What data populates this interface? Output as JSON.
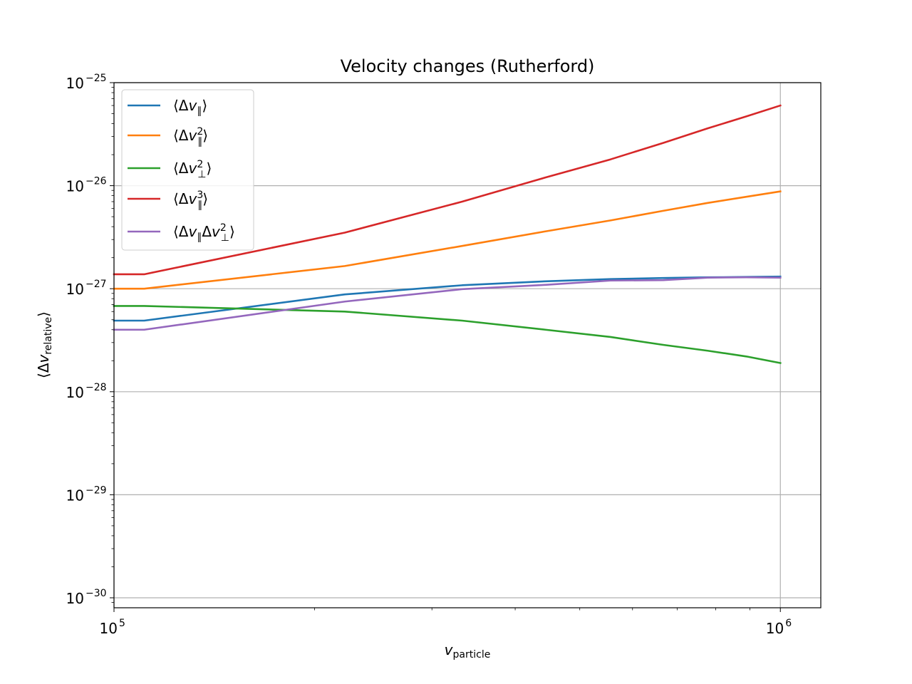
{
  "chart_data": {
    "type": "line",
    "title": "Velocity changes (Rutherford)",
    "xlabel": "v_particle",
    "ylabel": "⟨Δv_relative⟩",
    "xscale": "log",
    "yscale": "log",
    "xlim": [
      100000,
      1150000
    ],
    "ylim": [
      8e-31,
      1e-25
    ],
    "grid": true,
    "legend_position": "top-left",
    "x_ticks": [
      {
        "value": 100000,
        "mantissa": "10",
        "exponent": "5"
      },
      {
        "value": 1000000,
        "mantissa": "10",
        "exponent": "6"
      }
    ],
    "y_ticks": [
      {
        "value": 1e-30,
        "mantissa": "10",
        "exponent": "−30"
      },
      {
        "value": 1e-29,
        "mantissa": "10",
        "exponent": "−29"
      },
      {
        "value": 1e-28,
        "mantissa": "10",
        "exponent": "−28"
      },
      {
        "value": 1e-27,
        "mantissa": "10",
        "exponent": "−27"
      },
      {
        "value": 1e-26,
        "mantissa": "10",
        "exponent": "−26"
      },
      {
        "value": 1e-25,
        "mantissa": "10",
        "exponent": "−25"
      }
    ],
    "x": [
      100000,
      111000,
      222000,
      333000,
      444000,
      556000,
      667000,
      778000,
      889000,
      1000000
    ],
    "series": [
      {
        "name": "⟨Δv∥⟩",
        "color": "#1f77b4",
        "values": [
          4.9e-28,
          4.9e-28,
          8.8e-28,
          1.08e-27,
          1.18e-27,
          1.24e-27,
          1.27e-27,
          1.29e-27,
          1.3e-27,
          1.31e-27
        ]
      },
      {
        "name": "⟨Δv∥²⟩",
        "color": "#ff7f0e",
        "values": [
          1e-27,
          1e-27,
          1.66e-27,
          2.6e-27,
          3.6e-27,
          4.6e-27,
          5.7e-27,
          6.8e-27,
          7.8e-27,
          8.8e-27
        ]
      },
      {
        "name": "⟨Δv⊥²⟩",
        "color": "#2ca02c",
        "values": [
          6.8e-28,
          6.8e-28,
          6e-28,
          4.9e-28,
          4e-28,
          3.4e-28,
          2.85e-28,
          2.5e-28,
          2.2e-28,
          1.9e-28
        ]
      },
      {
        "name": "⟨Δv∥³⟩",
        "color": "#d62728",
        "values": [
          1.38e-27,
          1.38e-27,
          3.5e-27,
          7e-27,
          1.2e-26,
          1.8e-26,
          2.6e-26,
          3.6e-26,
          4.7e-26,
          6e-26
        ]
      },
      {
        "name": "⟨Δv∥Δv⊥²⟩",
        "color": "#9467bd",
        "values": [
          4e-28,
          4e-28,
          7.5e-28,
          9.9e-28,
          1.09e-27,
          1.2e-27,
          1.21e-27,
          1.28e-27,
          1.29e-27,
          1.28e-27
        ]
      }
    ]
  }
}
